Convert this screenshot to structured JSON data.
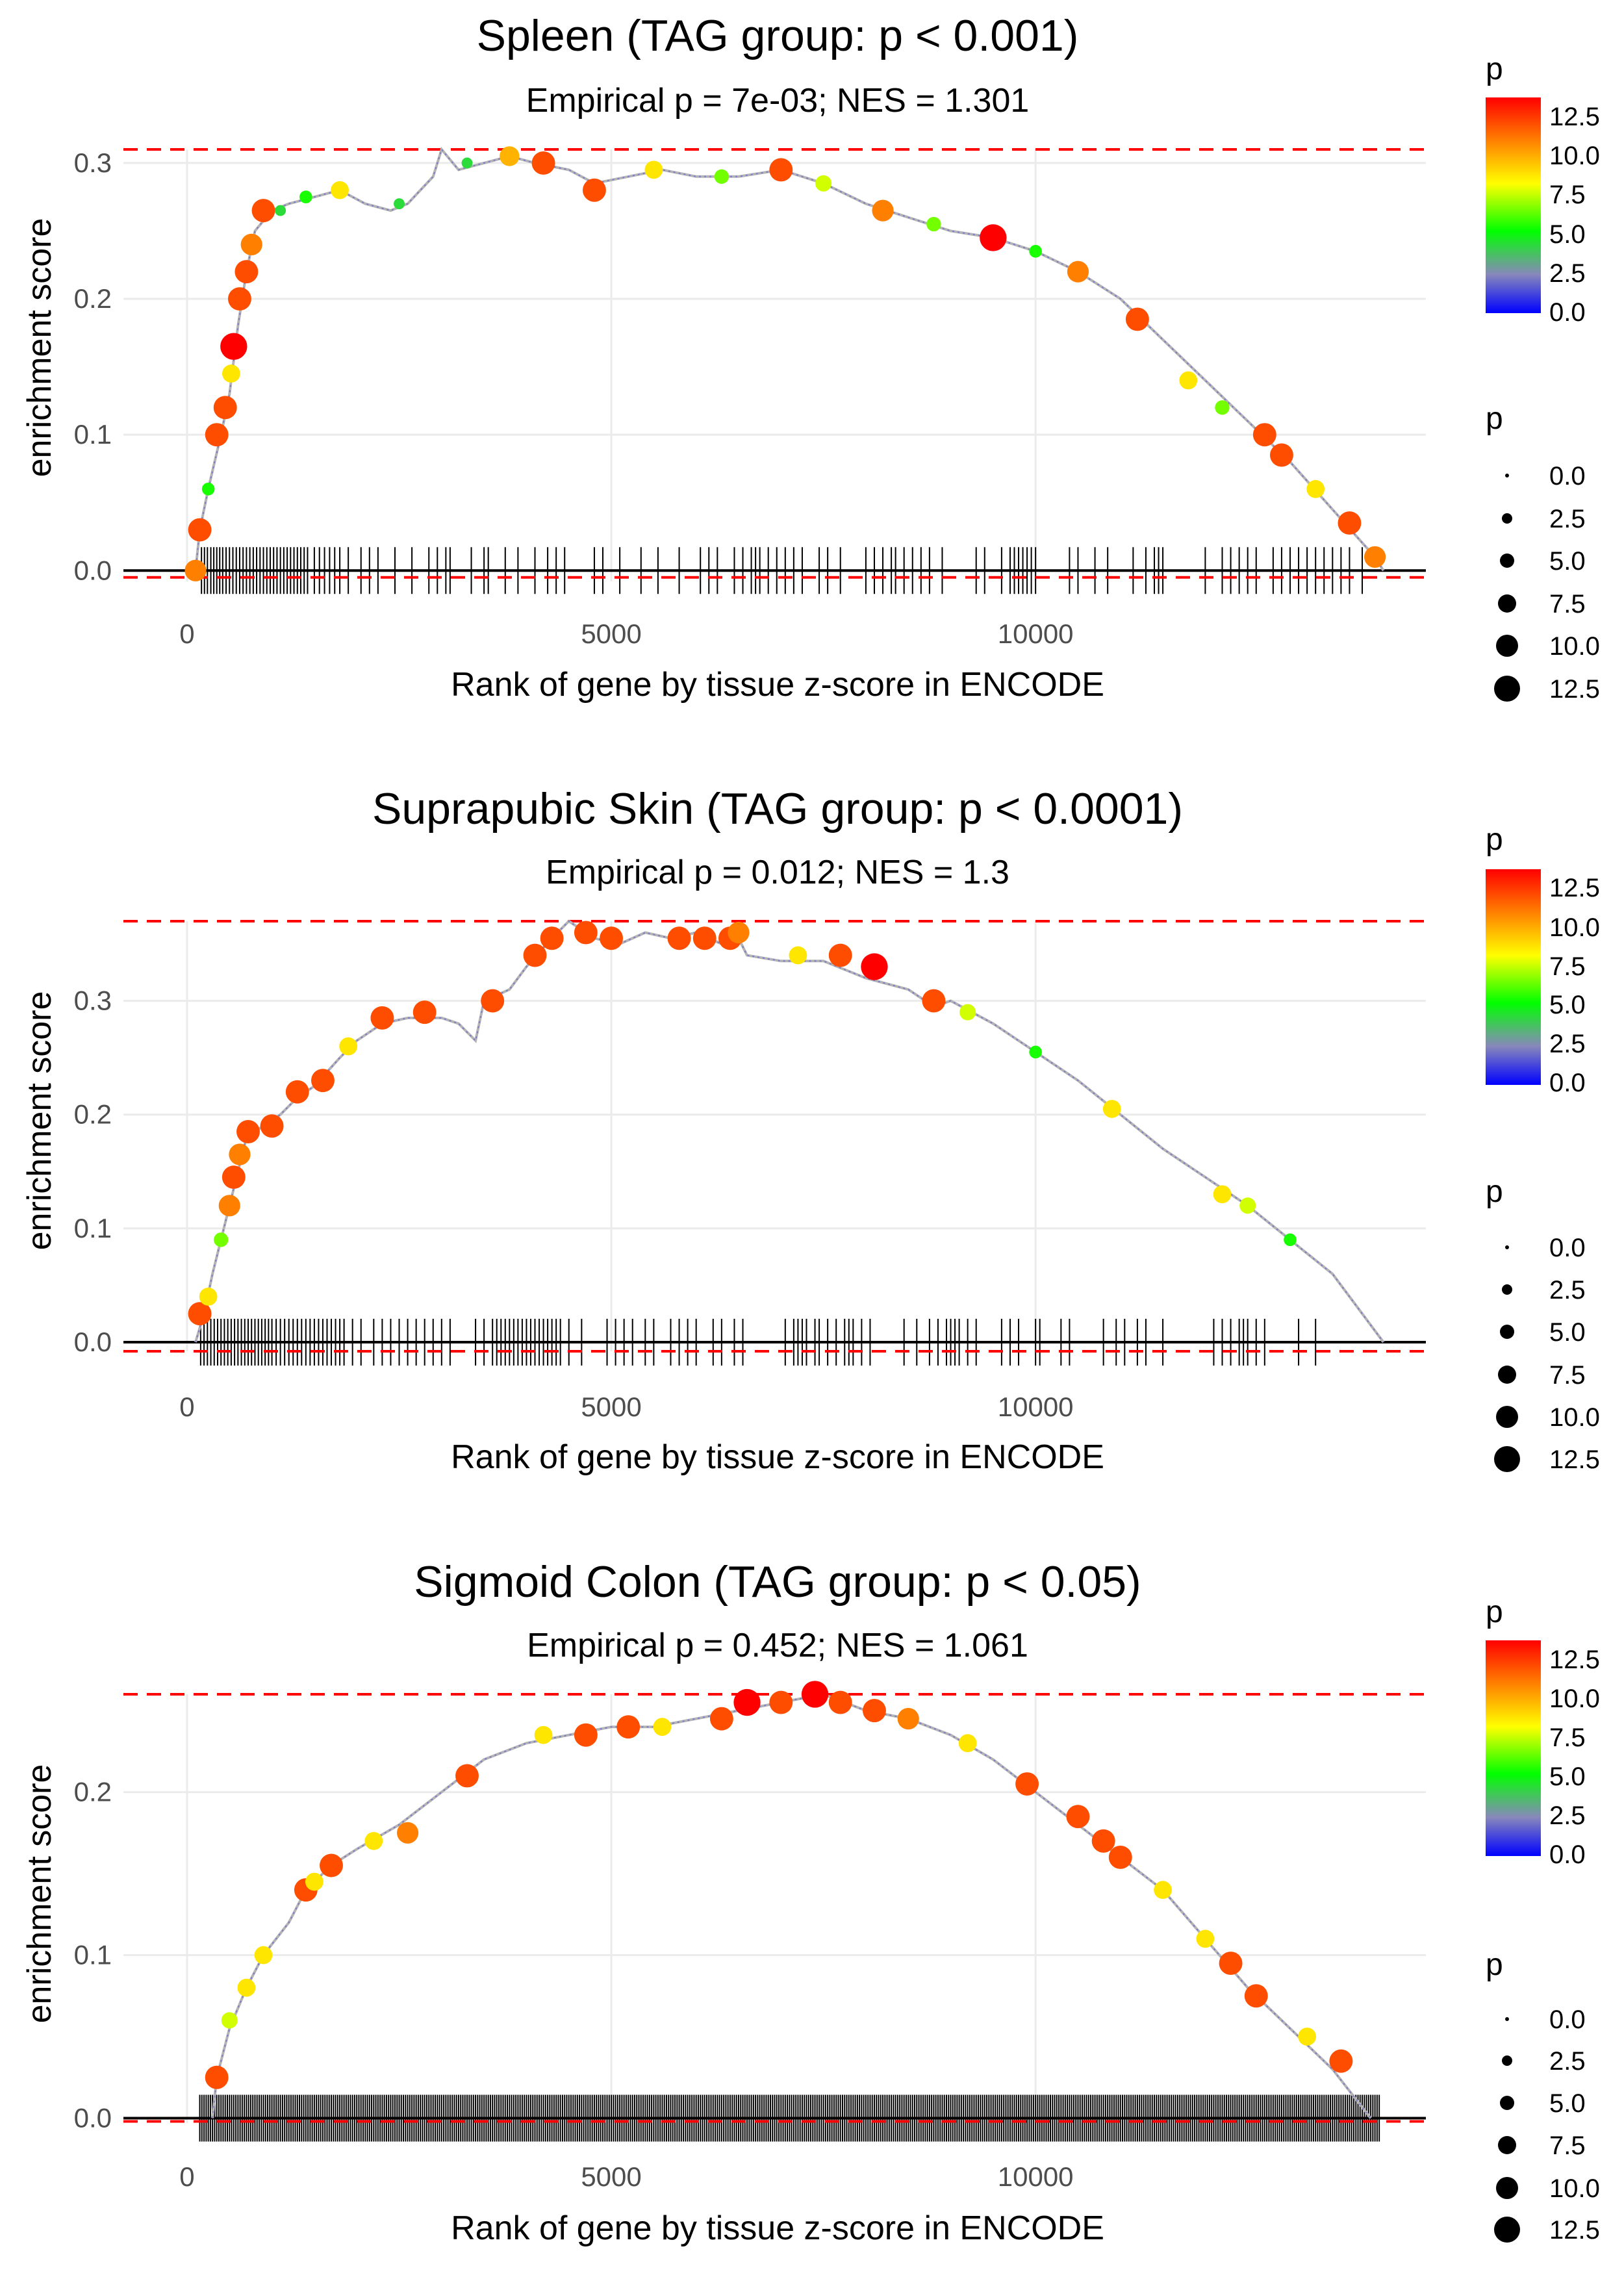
{
  "x_label": "Rank of gene by tissue z-score in ENCODE",
  "y_label": "enrichment score",
  "legend": {
    "color_title": "p",
    "size_title": "p",
    "color_ticks": [
      "12.5",
      "10.0",
      "7.5",
      "5.0",
      "2.5",
      "0.0"
    ],
    "size_ticks": [
      "0.0",
      "2.5",
      "5.0",
      "7.5",
      "10.0",
      "12.5"
    ],
    "color_ramp": [
      "#0000ff",
      "#888888",
      "#00ff00",
      "#ffff00",
      "#ff7f00",
      "#ff0000"
    ]
  },
  "chart_data": [
    {
      "type": "line",
      "title": "Spleen (TAG group: p < 0.001)",
      "subtitle": "Empirical p = 7e-03; NES = 1.301",
      "xlabel": "Rank of gene by tissue z-score in ENCODE",
      "ylabel": "enrichment score",
      "xlim": [
        -750,
        14600
      ],
      "ylim": [
        -0.008,
        0.31
      ],
      "x_ticks": [
        0,
        5000,
        10000
      ],
      "y_ticks": [
        0,
        0.1,
        0.2,
        0.3
      ],
      "x_tick_labels": [
        "0",
        "5000",
        "10000"
      ],
      "y_tick_labels": [
        "0.0",
        "0.1",
        "0.2",
        "0.3"
      ],
      "max_es": 0.31,
      "min_es": -0.005,
      "curve": [
        [
          100,
          0
        ],
        [
          150,
          0.03
        ],
        [
          250,
          0.06
        ],
        [
          400,
          0.1
        ],
        [
          500,
          0.13
        ],
        [
          600,
          0.18
        ],
        [
          700,
          0.22
        ],
        [
          800,
          0.25
        ],
        [
          1000,
          0.265
        ],
        [
          1200,
          0.27
        ],
        [
          1500,
          0.275
        ],
        [
          1800,
          0.28
        ],
        [
          2100,
          0.27
        ],
        [
          2400,
          0.265
        ],
        [
          2600,
          0.27
        ],
        [
          2900,
          0.29
        ],
        [
          3000,
          0.31
        ],
        [
          3200,
          0.295
        ],
        [
          3500,
          0.3
        ],
        [
          3800,
          0.305
        ],
        [
          4100,
          0.3
        ],
        [
          4500,
          0.295
        ],
        [
          4800,
          0.285
        ],
        [
          5200,
          0.29
        ],
        [
          5600,
          0.295
        ],
        [
          6000,
          0.29
        ],
        [
          6500,
          0.29
        ],
        [
          7000,
          0.295
        ],
        [
          7500,
          0.285
        ],
        [
          8000,
          0.27
        ],
        [
          8500,
          0.26
        ],
        [
          9000,
          0.25
        ],
        [
          9500,
          0.245
        ],
        [
          10000,
          0.235
        ],
        [
          10500,
          0.22
        ],
        [
          11000,
          0.2
        ],
        [
          11500,
          0.17
        ],
        [
          12000,
          0.14
        ],
        [
          12500,
          0.11
        ],
        [
          13000,
          0.08
        ],
        [
          13500,
          0.045
        ],
        [
          14000,
          0.01
        ],
        [
          14100,
          0
        ]
      ],
      "points": [
        [
          100,
          0,
          10
        ],
        [
          150,
          0.03,
          11
        ],
        [
          250,
          0.06,
          5
        ],
        [
          350,
          0.1,
          11
        ],
        [
          450,
          0.12,
          11
        ],
        [
          520,
          0.145,
          8
        ],
        [
          550,
          0.165,
          13
        ],
        [
          620,
          0.2,
          11
        ],
        [
          700,
          0.22,
          11
        ],
        [
          760,
          0.24,
          10
        ],
        [
          900,
          0.265,
          11
        ],
        [
          1100,
          0.265,
          4
        ],
        [
          1400,
          0.275,
          5
        ],
        [
          1800,
          0.28,
          8
        ],
        [
          2500,
          0.27,
          4
        ],
        [
          3300,
          0.3,
          4
        ],
        [
          3800,
          0.305,
          9
        ],
        [
          4200,
          0.3,
          11
        ],
        [
          4800,
          0.28,
          11
        ],
        [
          5500,
          0.295,
          8
        ],
        [
          6300,
          0.29,
          6
        ],
        [
          7000,
          0.295,
          11
        ],
        [
          7500,
          0.285,
          7
        ],
        [
          8200,
          0.265,
          10
        ],
        [
          8800,
          0.255,
          6
        ],
        [
          9500,
          0.245,
          13
        ],
        [
          10000,
          0.235,
          5
        ],
        [
          10500,
          0.22,
          10
        ],
        [
          11200,
          0.185,
          11
        ],
        [
          11800,
          0.14,
          8
        ],
        [
          12200,
          0.12,
          6
        ],
        [
          12700,
          0.1,
          11
        ],
        [
          12900,
          0.085,
          11
        ],
        [
          13300,
          0.06,
          8
        ],
        [
          13700,
          0.035,
          11
        ],
        [
          14000,
          0.01,
          10
        ]
      ],
      "rug": [
        170,
        205,
        240,
        280,
        315,
        350,
        385,
        420,
        460,
        500,
        540,
        580,
        620,
        660,
        700,
        740,
        780,
        820,
        860,
        900,
        940,
        980,
        1020,
        1060,
        1100,
        1140,
        1180,
        1220,
        1260,
        1300,
        1340,
        1380,
        1420,
        1500,
        1560,
        1620,
        1680,
        1740,
        1800,
        1900,
        2050,
        2150,
        2250,
        2450,
        2650,
        2850,
        2950,
        3050,
        3100,
        3350,
        3500,
        3550,
        3750,
        3900,
        4100,
        4250,
        4350,
        4450,
        4800,
        4900,
        5100,
        5350,
        5550,
        5800,
        6050,
        6150,
        6250,
        6450,
        6550,
        6650,
        6700,
        6750,
        6850,
        6950,
        7050,
        7150,
        7250,
        7450,
        7550,
        7700,
        8000,
        8100,
        8200,
        8300,
        8350,
        8450,
        8550,
        8650,
        8750,
        8900,
        9300,
        9400,
        9600,
        9700,
        9750,
        9800,
        9850,
        9900,
        9950,
        10000,
        10400,
        10500,
        10700,
        10850,
        11150,
        11300,
        11400,
        11450,
        11500,
        12000,
        12200,
        12300,
        12400,
        12500,
        12600,
        12800,
        12900,
        13000,
        13100,
        13200,
        13300,
        13400,
        13500,
        13600,
        13700,
        13850
      ]
    },
    {
      "type": "line",
      "title": "Suprapubic Skin (TAG group: p < 0.0001)",
      "subtitle": "Empirical p = 0.012; NES = 1.3",
      "xlabel": "Rank of gene by tissue z-score in ENCODE",
      "ylabel": "enrichment score",
      "xlim": [
        -750,
        14600
      ],
      "ylim": [
        -0.008,
        0.37
      ],
      "x_ticks": [
        0,
        5000,
        10000
      ],
      "y_ticks": [
        0,
        0.1,
        0.2,
        0.3
      ],
      "x_tick_labels": [
        "0",
        "5000",
        "10000"
      ],
      "y_tick_labels": [
        "0.0",
        "0.1",
        "0.2",
        "0.3"
      ],
      "max_es": 0.37,
      "min_es": -0.008,
      "curve": [
        [
          100,
          0
        ],
        [
          200,
          0.025
        ],
        [
          300,
          0.06
        ],
        [
          400,
          0.09
        ],
        [
          500,
          0.12
        ],
        [
          600,
          0.15
        ],
        [
          700,
          0.18
        ],
        [
          900,
          0.19
        ],
        [
          1100,
          0.2
        ],
        [
          1300,
          0.215
        ],
        [
          1500,
          0.225
        ],
        [
          1800,
          0.25
        ],
        [
          2000,
          0.265
        ],
        [
          2300,
          0.28
        ],
        [
          2600,
          0.285
        ],
        [
          3000,
          0.285
        ],
        [
          3200,
          0.28
        ],
        [
          3400,
          0.265
        ],
        [
          3500,
          0.3
        ],
        [
          3800,
          0.31
        ],
        [
          4000,
          0.33
        ],
        [
          4300,
          0.355
        ],
        [
          4500,
          0.37
        ],
        [
          4800,
          0.355
        ],
        [
          5100,
          0.35
        ],
        [
          5400,
          0.36
        ],
        [
          5700,
          0.355
        ],
        [
          6000,
          0.36
        ],
        [
          6300,
          0.35
        ],
        [
          6500,
          0.355
        ],
        [
          6600,
          0.34
        ],
        [
          7000,
          0.335
        ],
        [
          7500,
          0.335
        ],
        [
          8000,
          0.32
        ],
        [
          8500,
          0.31
        ],
        [
          8800,
          0.295
        ],
        [
          9000,
          0.3
        ],
        [
          9500,
          0.28
        ],
        [
          10000,
          0.255
        ],
        [
          10500,
          0.23
        ],
        [
          11000,
          0.2
        ],
        [
          11500,
          0.17
        ],
        [
          12000,
          0.145
        ],
        [
          12500,
          0.12
        ],
        [
          13000,
          0.09
        ],
        [
          13500,
          0.06
        ],
        [
          14100,
          0
        ]
      ],
      "points": [
        [
          150,
          0.025,
          11
        ],
        [
          250,
          0.04,
          8
        ],
        [
          400,
          0.09,
          6
        ],
        [
          500,
          0.12,
          10
        ],
        [
          550,
          0.145,
          11
        ],
        [
          620,
          0.165,
          10
        ],
        [
          720,
          0.185,
          11
        ],
        [
          1000,
          0.19,
          11
        ],
        [
          1300,
          0.22,
          11
        ],
        [
          1600,
          0.23,
          11
        ],
        [
          1900,
          0.26,
          8
        ],
        [
          2300,
          0.285,
          11
        ],
        [
          2800,
          0.29,
          11
        ],
        [
          3600,
          0.3,
          11
        ],
        [
          4100,
          0.34,
          11
        ],
        [
          4300,
          0.355,
          11
        ],
        [
          4700,
          0.36,
          11
        ],
        [
          5000,
          0.355,
          11
        ],
        [
          5800,
          0.355,
          11
        ],
        [
          6100,
          0.355,
          11
        ],
        [
          6400,
          0.355,
          11
        ],
        [
          6500,
          0.36,
          10
        ],
        [
          7200,
          0.34,
          8
        ],
        [
          7700,
          0.34,
          11
        ],
        [
          8100,
          0.33,
          13
        ],
        [
          8800,
          0.3,
          11
        ],
        [
          9200,
          0.29,
          7
        ],
        [
          10000,
          0.255,
          5
        ],
        [
          10900,
          0.205,
          8
        ],
        [
          12200,
          0.13,
          8
        ],
        [
          12500,
          0.12,
          7
        ],
        [
          13000,
          0.09,
          5
        ]
      ],
      "rug": [
        160,
        200,
        240,
        280,
        320,
        360,
        400,
        440,
        480,
        520,
        560,
        600,
        640,
        680,
        720,
        760,
        800,
        840,
        880,
        920,
        960,
        1000,
        1050,
        1100,
        1150,
        1200,
        1250,
        1300,
        1350,
        1400,
        1450,
        1500,
        1550,
        1600,
        1650,
        1700,
        1750,
        1800,
        1850,
        1950,
        2050,
        2200,
        2300,
        2400,
        2500,
        2600,
        2700,
        2800,
        2900,
        3000,
        3100,
        3400,
        3500,
        3600,
        3650,
        3700,
        3750,
        3800,
        3850,
        3900,
        3950,
        4000,
        4050,
        4100,
        4150,
        4200,
        4250,
        4300,
        4350,
        4400,
        4500,
        4650,
        4950,
        5050,
        5150,
        5250,
        5400,
        5500,
        5700,
        5800,
        5900,
        6000,
        6200,
        6300,
        6450,
        6550,
        7050,
        7150,
        7200,
        7250,
        7300,
        7400,
        7450,
        7550,
        7650,
        7750,
        7800,
        7850,
        7950,
        8050,
        8450,
        8600,
        8750,
        8850,
        8950,
        9000,
        9050,
        9100,
        9200,
        9300,
        9600,
        9700,
        9800,
        10000,
        10050,
        10300,
        10400,
        10800,
        10950,
        11050,
        11200,
        11300,
        11500,
        12100,
        12200,
        12300,
        12400,
        12450,
        12500,
        12600,
        12700,
        13100,
        13300
      ]
    },
    {
      "type": "line",
      "title": "Sigmoid Colon (TAG group: p < 0.05)",
      "subtitle": "Empirical p = 0.452; NES = 1.061",
      "xlabel": "Rank of gene by tissue z-score in ENCODE",
      "ylabel": "enrichment score",
      "xlim": [
        -750,
        14600
      ],
      "ylim": [
        -0.003,
        0.26
      ],
      "x_ticks": [
        0,
        5000,
        10000
      ],
      "y_ticks": [
        0,
        0.1,
        0.2
      ],
      "x_tick_labels": [
        "0",
        "5000",
        "10000"
      ],
      "y_tick_labels": [
        "0.0",
        "0.1",
        "0.2"
      ],
      "max_es": 0.26,
      "min_es": -0.002,
      "curve": [
        [
          300,
          0
        ],
        [
          350,
          0.025
        ],
        [
          500,
          0.055
        ],
        [
          700,
          0.08
        ],
        [
          900,
          0.1
        ],
        [
          1200,
          0.12
        ],
        [
          1400,
          0.14
        ],
        [
          1700,
          0.155
        ],
        [
          2000,
          0.165
        ],
        [
          2500,
          0.18
        ],
        [
          3000,
          0.2
        ],
        [
          3500,
          0.22
        ],
        [
          4000,
          0.23
        ],
        [
          4500,
          0.235
        ],
        [
          5000,
          0.24
        ],
        [
          5500,
          0.24
        ],
        [
          6000,
          0.245
        ],
        [
          6500,
          0.25
        ],
        [
          7000,
          0.255
        ],
        [
          7500,
          0.26
        ],
        [
          8000,
          0.25
        ],
        [
          8500,
          0.245
        ],
        [
          9000,
          0.235
        ],
        [
          9500,
          0.22
        ],
        [
          10000,
          0.2
        ],
        [
          10500,
          0.18
        ],
        [
          11000,
          0.16
        ],
        [
          11500,
          0.14
        ],
        [
          12000,
          0.11
        ],
        [
          12500,
          0.08
        ],
        [
          13000,
          0.055
        ],
        [
          13500,
          0.03
        ],
        [
          13800,
          0.01
        ],
        [
          13950,
          0
        ]
      ],
      "points": [
        [
          350,
          0.025,
          11
        ],
        [
          500,
          0.06,
          7
        ],
        [
          700,
          0.08,
          8
        ],
        [
          900,
          0.1,
          8
        ],
        [
          1400,
          0.14,
          11
        ],
        [
          1500,
          0.145,
          8
        ],
        [
          1700,
          0.155,
          11
        ],
        [
          2200,
          0.17,
          8
        ],
        [
          2600,
          0.175,
          10
        ],
        [
          3300,
          0.21,
          11
        ],
        [
          4200,
          0.235,
          8
        ],
        [
          4700,
          0.235,
          11
        ],
        [
          5200,
          0.24,
          11
        ],
        [
          5600,
          0.24,
          8
        ],
        [
          6300,
          0.245,
          11
        ],
        [
          6600,
          0.255,
          13
        ],
        [
          7000,
          0.255,
          11
        ],
        [
          7400,
          0.26,
          13
        ],
        [
          7700,
          0.255,
          11
        ],
        [
          8100,
          0.25,
          11
        ],
        [
          8500,
          0.245,
          10
        ],
        [
          9200,
          0.23,
          8
        ],
        [
          9900,
          0.205,
          11
        ],
        [
          10500,
          0.185,
          11
        ],
        [
          10800,
          0.17,
          11
        ],
        [
          11000,
          0.16,
          11
        ],
        [
          11500,
          0.14,
          8
        ],
        [
          12000,
          0.11,
          8
        ],
        [
          12300,
          0.095,
          11
        ],
        [
          12600,
          0.075,
          11
        ],
        [
          13200,
          0.05,
          8
        ],
        [
          13600,
          0.035,
          11
        ]
      ],
      "rug_dense": true
    }
  ]
}
